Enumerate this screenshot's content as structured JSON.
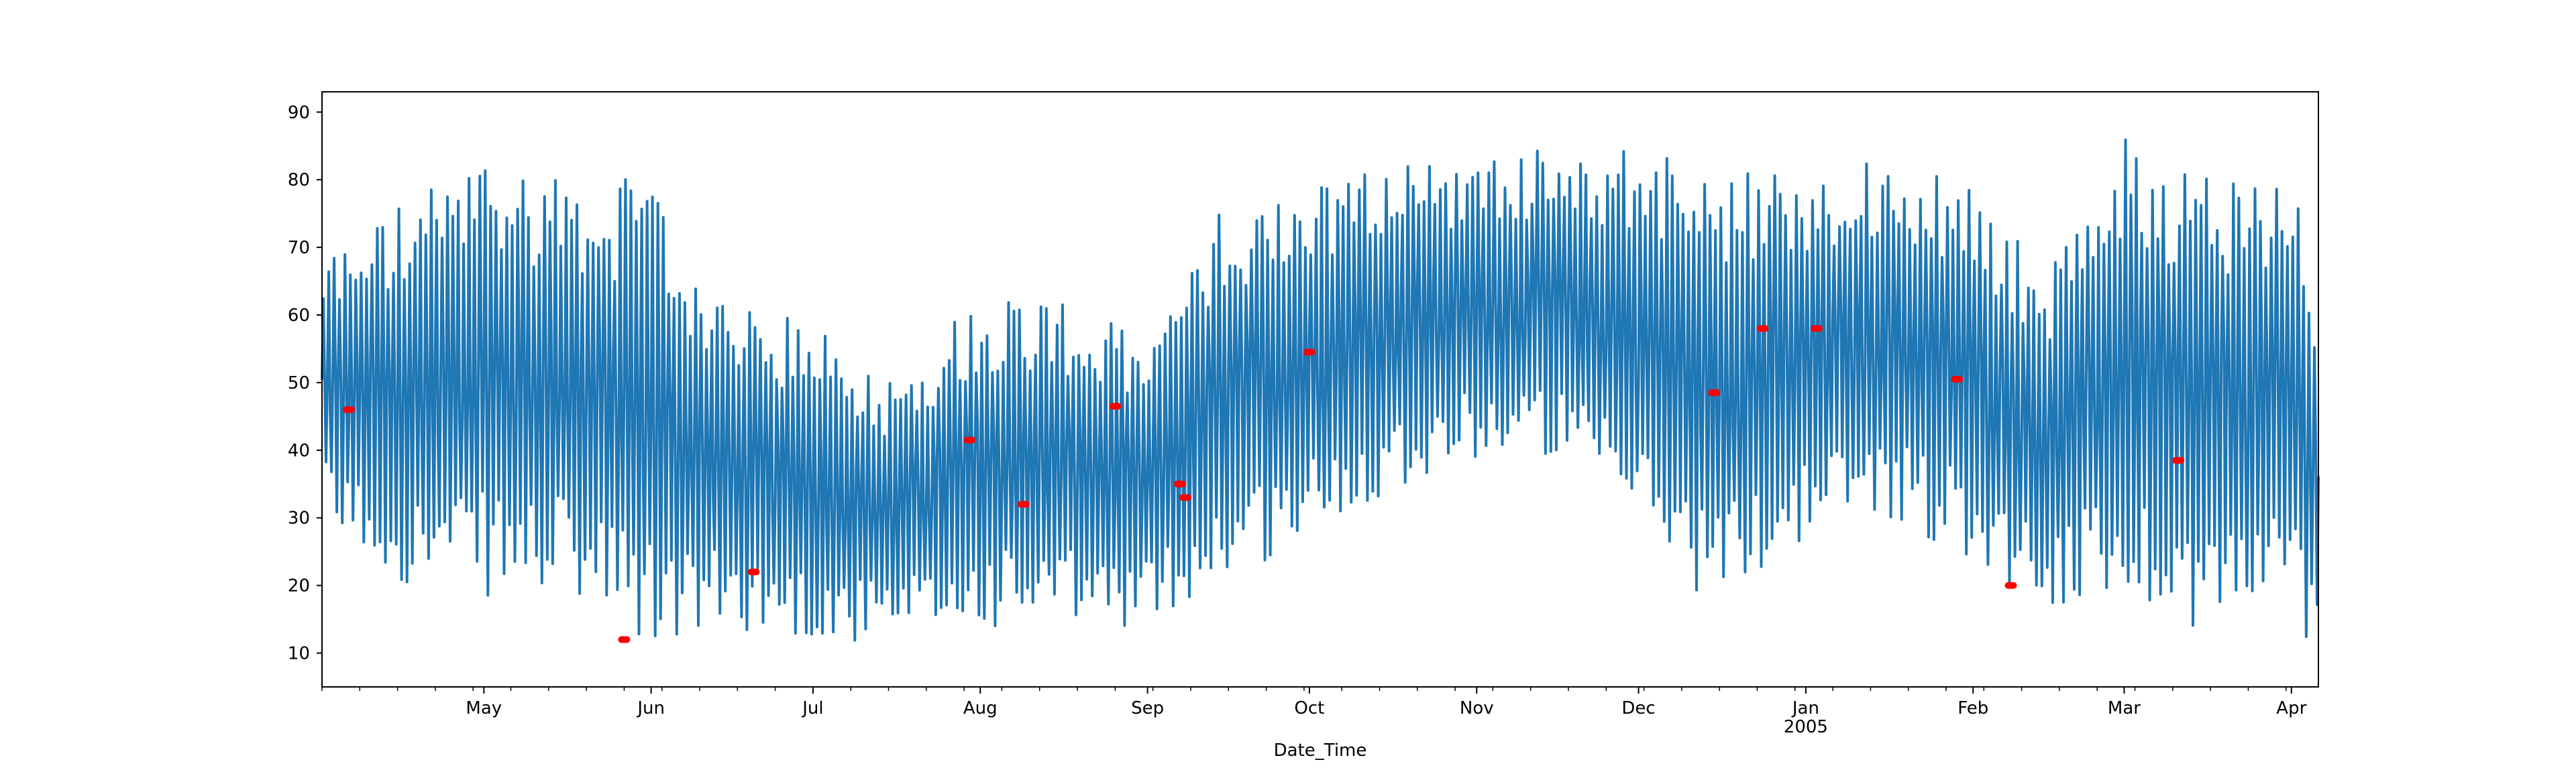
{
  "chart_data": {
    "type": "line",
    "xlabel": "Date_Time",
    "ylabel": "",
    "title": "",
    "xlim": [
      "2004-04-01",
      "2005-04-06"
    ],
    "ylim": [
      5,
      93
    ],
    "yticks": [
      10,
      20,
      30,
      40,
      50,
      60,
      70,
      80,
      90
    ],
    "xticks": [
      {
        "date": "2004-05-01",
        "label": "May"
      },
      {
        "date": "2004-06-01",
        "label": "Jun"
      },
      {
        "date": "2004-07-01",
        "label": "Jul"
      },
      {
        "date": "2004-08-01",
        "label": "Aug"
      },
      {
        "date": "2004-09-01",
        "label": "Sep"
      },
      {
        "date": "2004-10-01",
        "label": "Oct"
      },
      {
        "date": "2004-11-01",
        "label": "Nov"
      },
      {
        "date": "2004-12-01",
        "label": "Dec"
      },
      {
        "date": "2005-01-01",
        "label": "Jan",
        "sublabel": "2005"
      },
      {
        "date": "2005-02-01",
        "label": "Feb"
      },
      {
        "date": "2005-03-01",
        "label": "Mar"
      },
      {
        "date": "2005-04-01",
        "label": "Apr"
      }
    ],
    "grid": false,
    "legend": "none",
    "colors": {
      "line": "#1f77b4",
      "markers": "#ff0000"
    },
    "series": [
      {
        "style": "line",
        "x": [
          "2004-04-01",
          "2004-04-15",
          "2004-05-01",
          "2004-05-15",
          "2004-06-01",
          "2004-06-15",
          "2004-07-01",
          "2004-07-15",
          "2004-08-01",
          "2004-08-15",
          "2004-09-01",
          "2004-09-15",
          "2004-10-01",
          "2004-10-15",
          "2004-11-01",
          "2004-11-15",
          "2004-12-01",
          "2004-12-15",
          "2005-01-01",
          "2005-01-15",
          "2005-02-01",
          "2005-02-15",
          "2005-03-01",
          "2005-03-15",
          "2005-04-01",
          "2005-04-06"
        ],
        "envelope_low": [
          30,
          22,
          20,
          20,
          12,
          15,
          13,
          12,
          15,
          15,
          15,
          22,
          28,
          35,
          40,
          40,
          30,
          18,
          28,
          32,
          25,
          18,
          20,
          15,
          18,
          10
        ],
        "envelope_high": [
          68,
          75,
          82,
          80,
          78,
          60,
          58,
          50,
          62,
          62,
          55,
          75,
          78,
          82,
          82,
          84,
          84,
          80,
          80,
          82,
          78,
          65,
          85,
          80,
          80,
          63
        ]
      },
      {
        "style": "markers",
        "points": [
          {
            "x": "2004-04-06",
            "y": 46
          },
          {
            "x": "2004-05-27",
            "y": 12
          },
          {
            "x": "2004-06-20",
            "y": 22
          },
          {
            "x": "2004-07-30",
            "y": 41.5
          },
          {
            "x": "2004-08-09",
            "y": 32
          },
          {
            "x": "2004-08-26",
            "y": 46.5
          },
          {
            "x": "2004-09-07",
            "y": 35
          },
          {
            "x": "2004-09-08",
            "y": 33
          },
          {
            "x": "2004-10-01",
            "y": 54.5
          },
          {
            "x": "2004-12-15",
            "y": 48.5
          },
          {
            "x": "2004-12-24",
            "y": 58
          },
          {
            "x": "2005-01-03",
            "y": 58
          },
          {
            "x": "2005-01-29",
            "y": 50.5
          },
          {
            "x": "2005-02-08",
            "y": 20
          },
          {
            "x": "2005-03-11",
            "y": 38.5
          }
        ]
      }
    ]
  }
}
